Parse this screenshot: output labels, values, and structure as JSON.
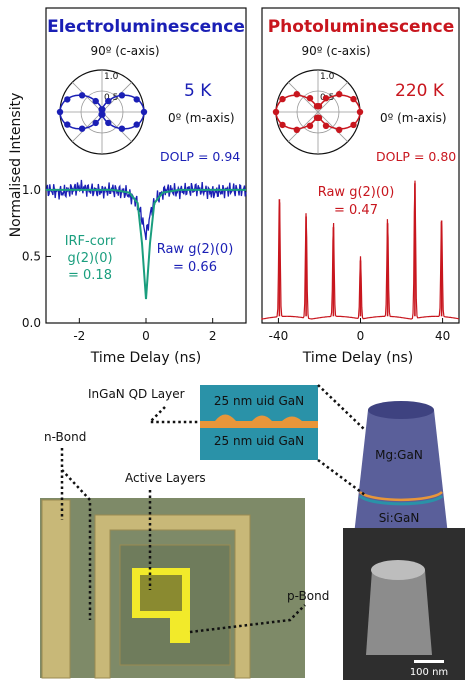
{
  "colors": {
    "el": "#1a1fb5",
    "pl": "#c8161e",
    "irf": "#1a9e7e",
    "text": "#111111",
    "chip_bg": "#7e8a68",
    "bond_gold": "#c8b878",
    "active_yellow": "#f2ea2a",
    "sem_bg": "#2e2e2e",
    "layer_teal": "#2a92a8",
    "layer_orange": "#e8963a"
  },
  "chart_data": [
    {
      "type": "line",
      "title": "Electroluminescence",
      "ylabel": "Normalised Intensity",
      "xlabel": "Time Delay (ns)",
      "xlim": [
        -3,
        3
      ],
      "ylim": [
        0,
        1.3
      ],
      "xticks": [
        "-2",
        "0",
        "2"
      ],
      "yticks": [
        "0.0",
        "0.5",
        "1.0"
      ],
      "series": [
        {
          "name": "Raw g(2)(0)",
          "x": [
            -3,
            -2.5,
            -2,
            -1.5,
            -1,
            -0.6,
            -0.3,
            -0.15,
            -0.05,
            0,
            0.05,
            0.15,
            0.3,
            0.6,
            1,
            1.5,
            2,
            2.5,
            3
          ],
          "y": [
            1.0,
            0.98,
            1.02,
            0.99,
            1.0,
            0.98,
            0.92,
            0.82,
            0.7,
            0.66,
            0.72,
            0.84,
            0.93,
            1.0,
            0.99,
            1.01,
            0.98,
            1.0,
            1.0
          ]
        },
        {
          "name": "IRF-corr g(2)(0)",
          "x": [
            -3,
            -1,
            -0.5,
            -0.25,
            -0.12,
            0,
            0.12,
            0.25,
            0.5,
            1,
            3
          ],
          "y": [
            1.0,
            1.0,
            0.98,
            0.9,
            0.6,
            0.18,
            0.6,
            0.9,
            0.98,
            1.0,
            1.0
          ]
        }
      ],
      "annotations": {
        "temperature": "5 K",
        "dolp": "DOLP = 0.94",
        "irf_line1": "IRF-corr",
        "irf_line2": "g(2)(0)",
        "irf_value": "= 0.18",
        "raw_line1": "Raw g(2)(0)",
        "raw_value": "= 0.66"
      },
      "polar_inset": {
        "ticks": [
          "1.0",
          "0.5"
        ],
        "top_label": "90º (c-axis)",
        "right_label": "0º (m-axis)",
        "angles_deg": [
          0,
          20,
          40,
          60,
          80,
          100,
          120,
          140,
          160,
          180,
          200,
          220,
          240,
          260,
          280,
          300,
          320,
          340
        ],
        "r": [
          1.0,
          0.88,
          0.62,
          0.3,
          0.06,
          0.06,
          0.3,
          0.62,
          0.88,
          1.0,
          0.88,
          0.62,
          0.3,
          0.06,
          0.06,
          0.3,
          0.62,
          0.88
        ]
      }
    },
    {
      "type": "line",
      "title": "Photoluminescence",
      "xlabel": "Time Delay (ns)",
      "xlim": [
        -48,
        48
      ],
      "ylim": [
        0,
        1.3
      ],
      "xticks": [
        "-40",
        "0",
        "40"
      ],
      "series": [
        {
          "name": "Raw g(2)(0)",
          "peak_x": [
            -39.5,
            -26.5,
            -13.2,
            0,
            13.2,
            26.5,
            39.5
          ],
          "peak_y": [
            0.93,
            0.8,
            0.72,
            0.47,
            0.75,
            1.05,
            0.77
          ]
        }
      ],
      "annotations": {
        "temperature": "220 K",
        "dolp": "DOLP = 0.80",
        "raw_line1": "Raw g(2)(0)",
        "raw_value": "= 0.47"
      },
      "polar_inset": {
        "ticks": [
          "1.0",
          "0.5"
        ],
        "top_label": "90º (c-axis)",
        "right_label": "0º (m-axis)",
        "angles_deg": [
          0,
          20,
          40,
          60,
          80,
          100,
          120,
          140,
          160,
          180,
          200,
          220,
          240,
          260,
          280,
          300,
          320,
          340
        ],
        "r": [
          1.0,
          0.9,
          0.66,
          0.38,
          0.14,
          0.14,
          0.38,
          0.66,
          0.9,
          1.0,
          0.9,
          0.66,
          0.38,
          0.14,
          0.14,
          0.38,
          0.66,
          0.9
        ]
      }
    }
  ],
  "device": {
    "label_ingan": "InGaN QD Layer",
    "layer_top": "25 nm uid GaN",
    "layer_bottom": "25 nm uid GaN",
    "label_nbond": "n-Bond",
    "label_active": "Active Layers",
    "label_pbond": "p-Bond",
    "cyl_top": "Mg:GaN",
    "cyl_bottom": "Si:GaN",
    "scalebar": "100 nm"
  }
}
